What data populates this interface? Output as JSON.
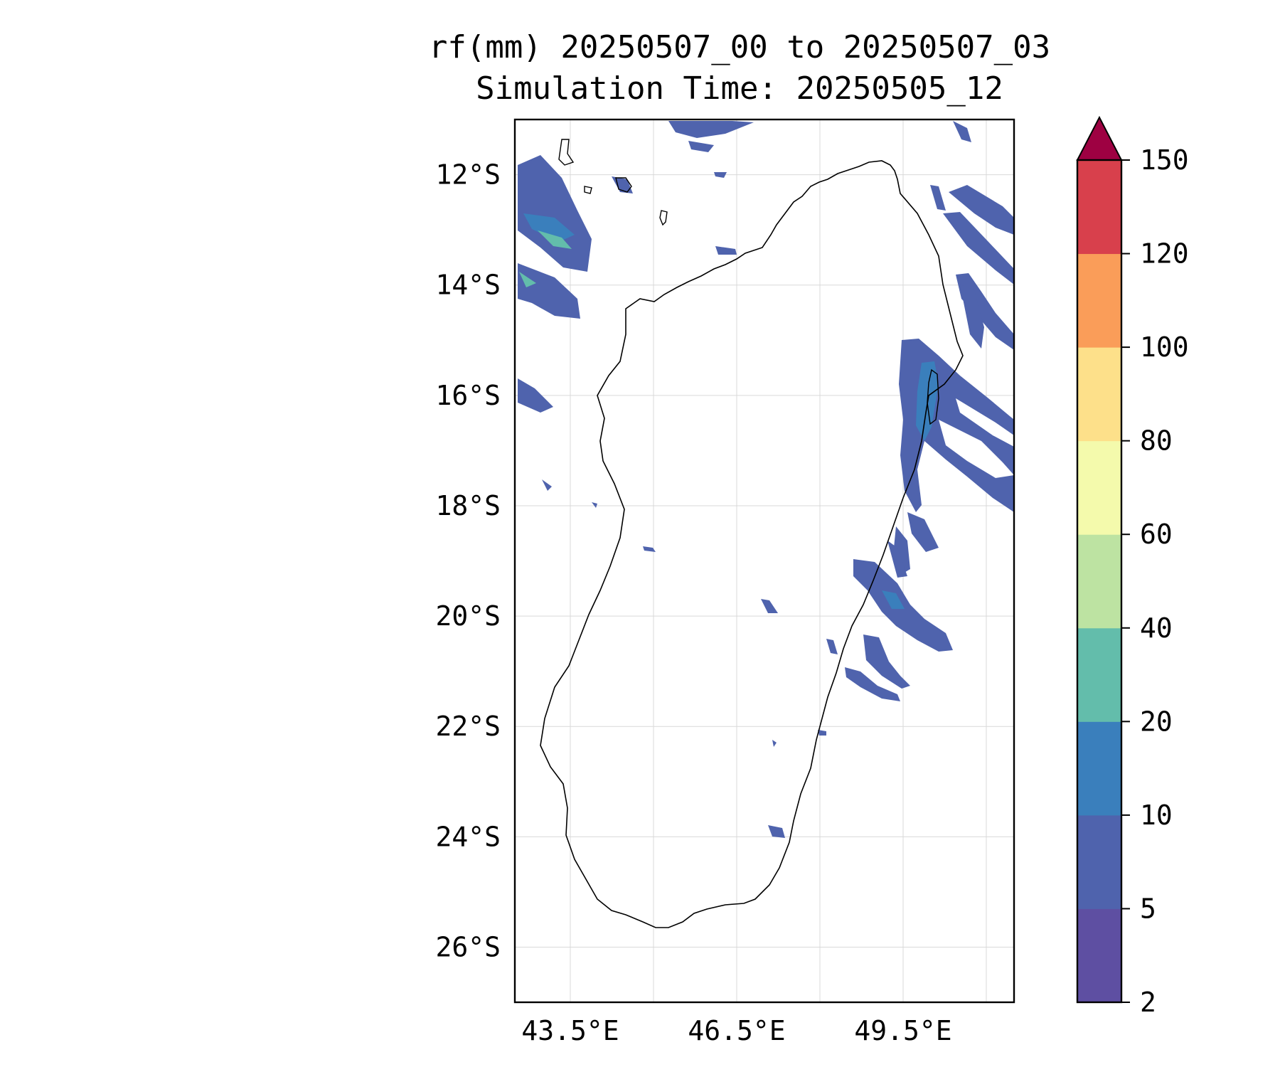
{
  "title": {
    "line1": "rf(mm) 20250507_00 to 20250507_03",
    "line2": "Simulation Time: 20250505_12"
  },
  "map": {
    "lon_range": [
      42.5,
      51.5
    ],
    "lat_range": [
      -27.0,
      -11.0
    ],
    "lat_ticks": [
      {
        "value": -12,
        "label": "12°S"
      },
      {
        "value": -14,
        "label": "14°S"
      },
      {
        "value": -16,
        "label": "16°S"
      },
      {
        "value": -18,
        "label": "18°S"
      },
      {
        "value": -20,
        "label": "20°S"
      },
      {
        "value": -22,
        "label": "22°S"
      },
      {
        "value": -24,
        "label": "24°S"
      },
      {
        "value": -26,
        "label": "26°S"
      }
    ],
    "lon_ticks": [
      {
        "value": 43.5,
        "label": "43.5°E"
      },
      {
        "value": 46.5,
        "label": "46.5°E"
      },
      {
        "value": 49.5,
        "label": "49.5°E"
      }
    ],
    "grid": true
  },
  "colorbar": {
    "levels": [
      2,
      5,
      10,
      20,
      40,
      60,
      80,
      100,
      120,
      150
    ],
    "labels": [
      "2",
      "5",
      "10",
      "20",
      "40",
      "60",
      "80",
      "100",
      "120",
      "150"
    ],
    "colors": [
      "#5e4fa2",
      "#4f63ad",
      "#3a7fbc",
      "#63bdab",
      "#bde3a2",
      "#f4faac",
      "#fde08a",
      "#fa9d59",
      "#d8404c"
    ],
    "extend_color": "#9e0142",
    "extend": "max"
  },
  "colors": {
    "coastline": "#000000",
    "grid": "#d9d9d9"
  }
}
